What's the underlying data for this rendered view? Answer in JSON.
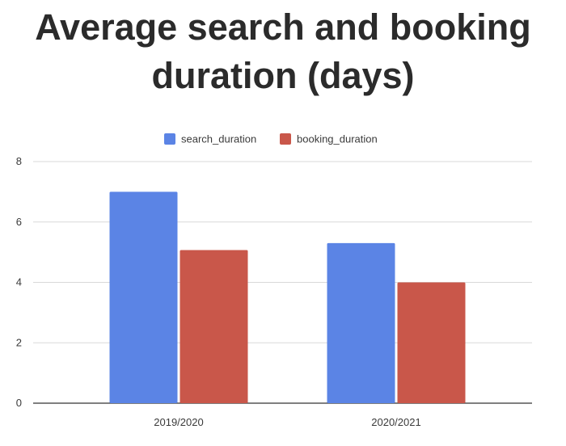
{
  "chart_data": {
    "type": "bar",
    "title": "Average search and booking duration (days)",
    "xlabel": "",
    "ylabel": "",
    "categories": [
      "2019/2020",
      "2020/2021"
    ],
    "series": [
      {
        "name": "search_duration",
        "color": "#5b84e5",
        "values": [
          7.0,
          5.3
        ]
      },
      {
        "name": "booking_duration",
        "color": "#c9574a",
        "values": [
          5.07,
          4.0
        ]
      }
    ],
    "ylim": [
      0,
      8
    ],
    "yticks": [
      0,
      2,
      4,
      6,
      8
    ],
    "grid": true,
    "legend_position": "top-center"
  }
}
